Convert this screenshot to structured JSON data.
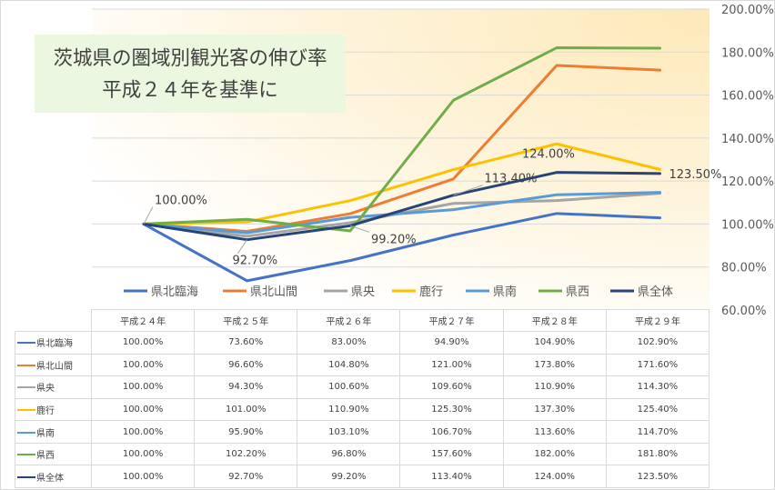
{
  "title": {
    "line1": "茨城県の圏域別観光客の伸び率",
    "line2": "平成２４年を基準に"
  },
  "chart_data": {
    "type": "line",
    "categories": [
      "平成２４年",
      "平成２５年",
      "平成２６年",
      "平成２７年",
      "平成２８年",
      "平成２９年"
    ],
    "y_axis": {
      "min": 60,
      "max": 200,
      "step": 20,
      "position": "right",
      "tick_labels": [
        "60.00%",
        "80.00%",
        "100.00%",
        "120.00%",
        "140.00%",
        "160.00%",
        "180.00%",
        "200.00%"
      ]
    },
    "series": [
      {
        "name": "県北臨海",
        "color": "#4472c4",
        "values": [
          100,
          73.6,
          83,
          94.9,
          104.9,
          102.9
        ],
        "display": [
          "100.00%",
          "73.60%",
          "83.00%",
          "94.90%",
          "104.90%",
          "102.90%"
        ]
      },
      {
        "name": "県北山間",
        "color": "#ed7d31",
        "values": [
          100,
          96.6,
          104.8,
          121,
          173.8,
          171.6
        ],
        "display": [
          "100.00%",
          "96.60%",
          "104.80%",
          "121.00%",
          "173.80%",
          "171.60%"
        ]
      },
      {
        "name": "県央",
        "color": "#a5a5a5",
        "values": [
          100,
          94.3,
          100.6,
          109.6,
          110.9,
          114.3
        ],
        "display": [
          "100.00%",
          "94.30%",
          "100.60%",
          "109.60%",
          "110.90%",
          "114.30%"
        ]
      },
      {
        "name": "鹿行",
        "color": "#ffc000",
        "values": [
          100,
          101,
          110.9,
          125.3,
          137.3,
          125.4
        ],
        "display": [
          "100.00%",
          "101.00%",
          "110.90%",
          "125.30%",
          "137.30%",
          "125.40%"
        ]
      },
      {
        "name": "県南",
        "color": "#5b9bd5",
        "values": [
          100,
          95.9,
          103.1,
          106.7,
          113.6,
          114.7
        ],
        "display": [
          "100.00%",
          "95.90%",
          "103.10%",
          "106.70%",
          "113.60%",
          "114.70%"
        ]
      },
      {
        "name": "県西",
        "color": "#70ad47",
        "values": [
          100,
          102.2,
          96.8,
          157.6,
          182,
          181.8
        ],
        "display": [
          "100.00%",
          "102.20%",
          "96.80%",
          "157.60%",
          "182.00%",
          "181.80%"
        ]
      },
      {
        "name": "県全体",
        "color": "#264478",
        "values": [
          100,
          92.7,
          99.2,
          113.4,
          124,
          123.5
        ],
        "display": [
          "100.00%",
          "92.70%",
          "99.20%",
          "113.40%",
          "124.00%",
          "123.50%"
        ]
      }
    ],
    "data_labels": [
      {
        "series": 6,
        "index": 0,
        "text": "100.00%"
      },
      {
        "series": 6,
        "index": 1,
        "text": "92.70%"
      },
      {
        "series": 6,
        "index": 2,
        "text": "99.20%"
      },
      {
        "series": 6,
        "index": 3,
        "text": "113.40%"
      },
      {
        "series": 6,
        "index": 4,
        "text": "124.00%"
      },
      {
        "series": 6,
        "index": 5,
        "text": "123.50%"
      }
    ],
    "legend_position": "bottom",
    "data_table": true
  }
}
